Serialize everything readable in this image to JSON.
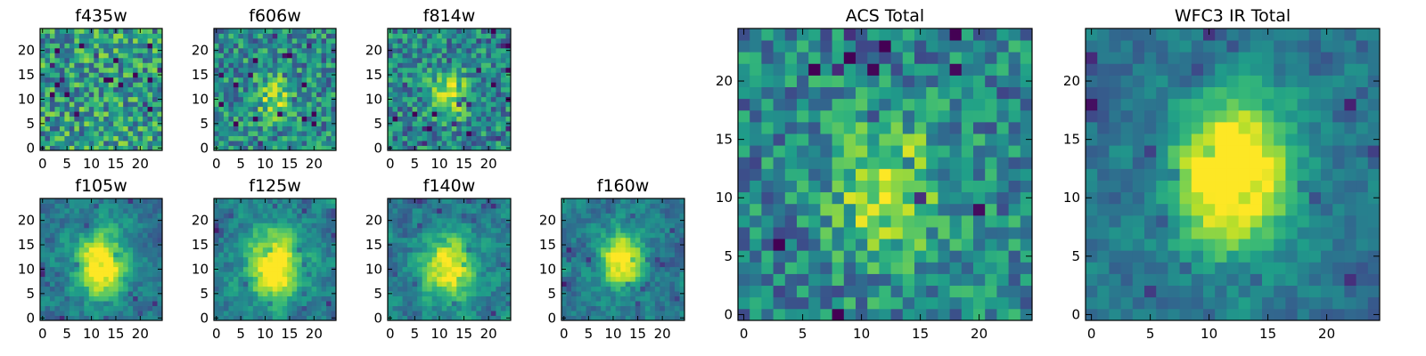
{
  "figure": {
    "background": "#ffffff",
    "colormap": "viridis"
  },
  "chart_data": [
    {
      "type": "heatmap",
      "title": "f435w",
      "grid_size": 25,
      "xlim": [
        0,
        24
      ],
      "ylim": [
        0,
        24
      ],
      "xticks": [
        0,
        5,
        10,
        15,
        20
      ],
      "yticks": [
        0,
        5,
        10,
        15,
        20
      ],
      "structure": "noise",
      "blob_center": [
        12,
        11
      ],
      "blob_sigma": 3.0,
      "blob_strength": 0.0
    },
    {
      "type": "heatmap",
      "title": "f606w",
      "grid_size": 25,
      "xlim": [
        0,
        24
      ],
      "ylim": [
        0,
        24
      ],
      "xticks": [
        0,
        5,
        10,
        15,
        20
      ],
      "yticks": [
        0,
        5,
        10,
        15,
        20
      ],
      "structure": "faint-center",
      "blob_center": [
        12,
        10
      ],
      "blob_sigma": 2.5,
      "blob_strength": 0.35
    },
    {
      "type": "heatmap",
      "title": "f814w",
      "grid_size": 25,
      "xlim": [
        0,
        24
      ],
      "ylim": [
        0,
        24
      ],
      "xticks": [
        0,
        5,
        10,
        15,
        20
      ],
      "yticks": [
        0,
        5,
        10,
        15,
        20
      ],
      "structure": "faint-center",
      "blob_center": [
        12,
        11
      ],
      "blob_sigma": 2.5,
      "blob_strength": 0.45
    },
    {
      "type": "heatmap",
      "title": "f105w",
      "grid_size": 25,
      "xlim": [
        0,
        24
      ],
      "ylim": [
        0,
        24
      ],
      "xticks": [
        0,
        5,
        10,
        15,
        20
      ],
      "yticks": [
        0,
        5,
        10,
        15,
        20
      ],
      "structure": "central-source",
      "blob_center": [
        12,
        11
      ],
      "blob_sigma": 3.5,
      "blob_strength": 0.75
    },
    {
      "type": "heatmap",
      "title": "f125w",
      "grid_size": 25,
      "xlim": [
        0,
        24
      ],
      "ylim": [
        0,
        24
      ],
      "xticks": [
        0,
        5,
        10,
        15,
        20
      ],
      "yticks": [
        0,
        5,
        10,
        15,
        20
      ],
      "structure": "central-source",
      "blob_center": [
        12,
        11
      ],
      "blob_sigma": 4.0,
      "blob_strength": 0.7
    },
    {
      "type": "heatmap",
      "title": "f140w",
      "grid_size": 25,
      "xlim": [
        0,
        24
      ],
      "ylim": [
        0,
        24
      ],
      "xticks": [
        0,
        5,
        10,
        15,
        20
      ],
      "yticks": [
        0,
        5,
        10,
        15,
        20
      ],
      "structure": "central-source",
      "blob_center": [
        12,
        10
      ],
      "blob_sigma": 3.5,
      "blob_strength": 0.65
    },
    {
      "type": "heatmap",
      "title": "f160w",
      "grid_size": 25,
      "xlim": [
        0,
        24
      ],
      "ylim": [
        0,
        24
      ],
      "xticks": [
        0,
        5,
        10,
        15,
        20
      ],
      "yticks": [
        0,
        5,
        10,
        15,
        20
      ],
      "structure": "central-source",
      "blob_center": [
        12,
        12
      ],
      "blob_sigma": 3.0,
      "blob_strength": 0.7
    },
    {
      "type": "heatmap",
      "title": "ACS Total",
      "grid_size": 25,
      "xlim": [
        0,
        24
      ],
      "ylim": [
        0,
        24
      ],
      "xticks": [
        0,
        5,
        10,
        15,
        20
      ],
      "yticks": [
        0,
        5,
        10,
        15,
        20
      ],
      "structure": "faint-center",
      "blob_center": [
        12,
        11
      ],
      "blob_sigma": 3.0,
      "blob_strength": 0.5
    },
    {
      "type": "heatmap",
      "title": "WFC3 IR Total",
      "grid_size": 25,
      "xlim": [
        0,
        24
      ],
      "ylim": [
        0,
        24
      ],
      "xticks": [
        0,
        5,
        10,
        15,
        20
      ],
      "yticks": [
        0,
        5,
        10,
        15,
        20
      ],
      "structure": "central-source",
      "blob_center": [
        12,
        12
      ],
      "blob_sigma": 3.5,
      "blob_strength": 0.85
    }
  ]
}
